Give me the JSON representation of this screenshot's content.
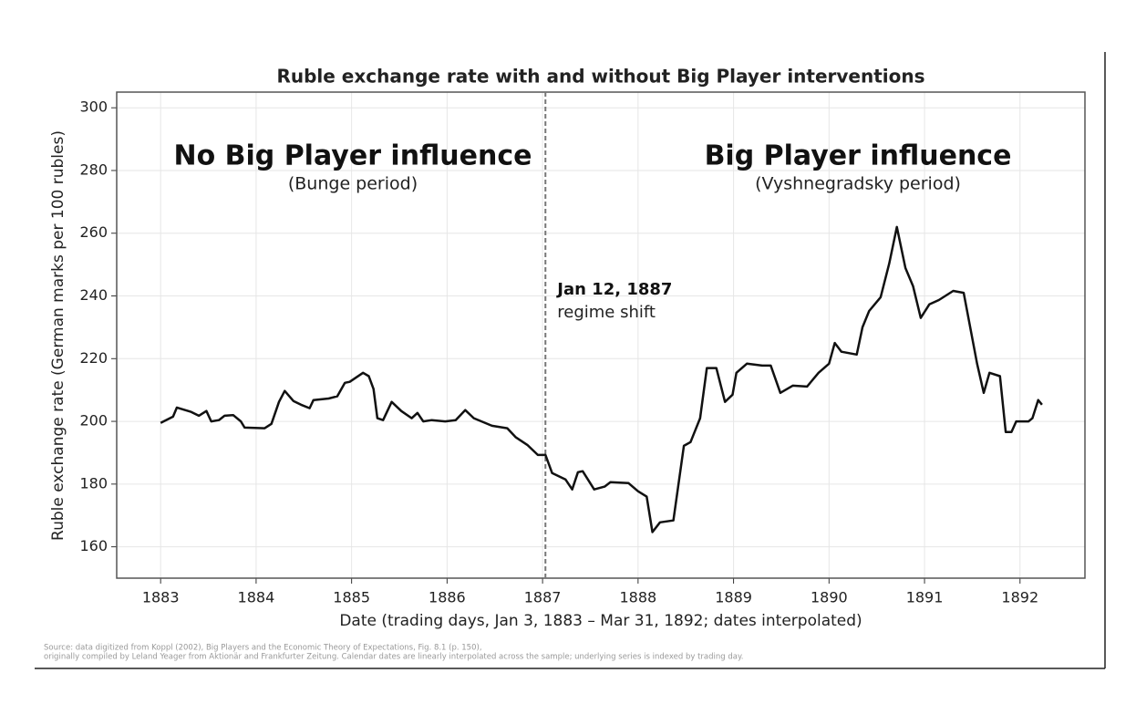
{
  "chart_data": {
    "type": "line",
    "title": "Ruble exchange rate with and without Big Player interventions",
    "xlabel": "Date (trading days, Jan 3, 1883 – Mar 31, 1892; dates interpolated)",
    "ylabel": "Ruble exchange rate (German marks per 100 rubles)",
    "annotations": {
      "left_title": "No Big Player influence",
      "left_subtitle": "(Bunge period)",
      "right_title": "Big Player influence",
      "right_subtitle": "(Vyshnegradsky period)",
      "shift_date": "Jan 12, 1887",
      "shift_label": "regime shift"
    },
    "source": [
      "Source: data digitized from Koppl (2002), Big Players and the Economic Theory of Expectations, Fig. 8.1 (p. 150),",
      "originally compiled by Leland Yeager from Aktionär and Frankfurter Zeitung. Calendar dates are linearly interpolated across the sample; underlying series is indexed by trading day."
    ],
    "vline": 1887.03,
    "color": "#111111",
    "grid": true,
    "xlim": [
      1882.54,
      1892.68
    ],
    "ylim": [
      150,
      305
    ],
    "xticks": [
      1883,
      1884,
      1885,
      1886,
      1887,
      1888,
      1889,
      1890,
      1891,
      1892
    ],
    "yticks": [
      160,
      180,
      200,
      220,
      240,
      260,
      280,
      300
    ],
    "x": [
      1883.0,
      1883.13,
      1883.17,
      1883.32,
      1883.4,
      1883.48,
      1883.53,
      1883.61,
      1883.67,
      1883.76,
      1883.84,
      1883.88,
      1884.09,
      1884.16,
      1884.24,
      1884.3,
      1884.39,
      1884.47,
      1884.56,
      1884.6,
      1884.76,
      1884.85,
      1884.93,
      1884.98,
      1885.12,
      1885.18,
      1885.23,
      1885.27,
      1885.33,
      1885.42,
      1885.52,
      1885.63,
      1885.69,
      1885.75,
      1885.84,
      1885.98,
      1886.09,
      1886.19,
      1886.28,
      1886.47,
      1886.63,
      1886.72,
      1886.84,
      1886.95,
      1887.03,
      1887.1,
      1887.24,
      1887.31,
      1887.37,
      1887.42,
      1887.54,
      1887.65,
      1887.71,
      1887.9,
      1888.0,
      1888.09,
      1888.15,
      1888.23,
      1888.37,
      1888.48,
      1888.55,
      1888.65,
      1888.72,
      1888.82,
      1888.91,
      1888.99,
      1889.03,
      1889.14,
      1889.3,
      1889.39,
      1889.49,
      1889.62,
      1889.77,
      1889.89,
      1890.0,
      1890.06,
      1890.13,
      1890.29,
      1890.35,
      1890.42,
      1890.54,
      1890.63,
      1890.71,
      1890.8,
      1890.88,
      1890.96,
      1891.05,
      1891.15,
      1891.3,
      1891.41,
      1891.55,
      1891.62,
      1891.68,
      1891.79,
      1891.85,
      1891.91,
      1891.96,
      1892.09,
      1892.13,
      1892.19,
      1892.23
    ],
    "values": [
      199.5,
      201.5,
      204.4,
      203,
      201.8,
      203.3,
      200,
      200.4,
      201.8,
      202,
      200,
      198,
      197.8,
      199.2,
      206.2,
      209.7,
      206.5,
      205.3,
      204.2,
      206.8,
      207.3,
      208,
      212.3,
      212.6,
      215.5,
      214.4,
      210.3,
      201,
      200.4,
      206.2,
      203.3,
      201,
      202.7,
      200,
      200.4,
      200,
      200.4,
      203.6,
      201,
      198.6,
      197.8,
      194.9,
      192.5,
      189.3,
      189.3,
      183.5,
      181.5,
      178.3,
      183.8,
      184.1,
      178.3,
      179.2,
      180.6,
      180.3,
      177.7,
      176,
      164.7,
      167.8,
      168.4,
      192.2,
      193.4,
      201,
      217,
      217,
      206.2,
      208.5,
      215.5,
      218.4,
      217.8,
      217.8,
      209.1,
      211.4,
      211.1,
      215.5,
      218.4,
      225,
      222.2,
      221.3,
      230,
      235.2,
      239.6,
      250.3,
      262,
      248.9,
      243.1,
      233,
      237.3,
      238.7,
      241.6,
      241,
      218.4,
      209.1,
      215.5,
      214.4,
      196.6,
      196.6,
      200,
      200,
      201,
      206.8,
      205.3
    ]
  }
}
